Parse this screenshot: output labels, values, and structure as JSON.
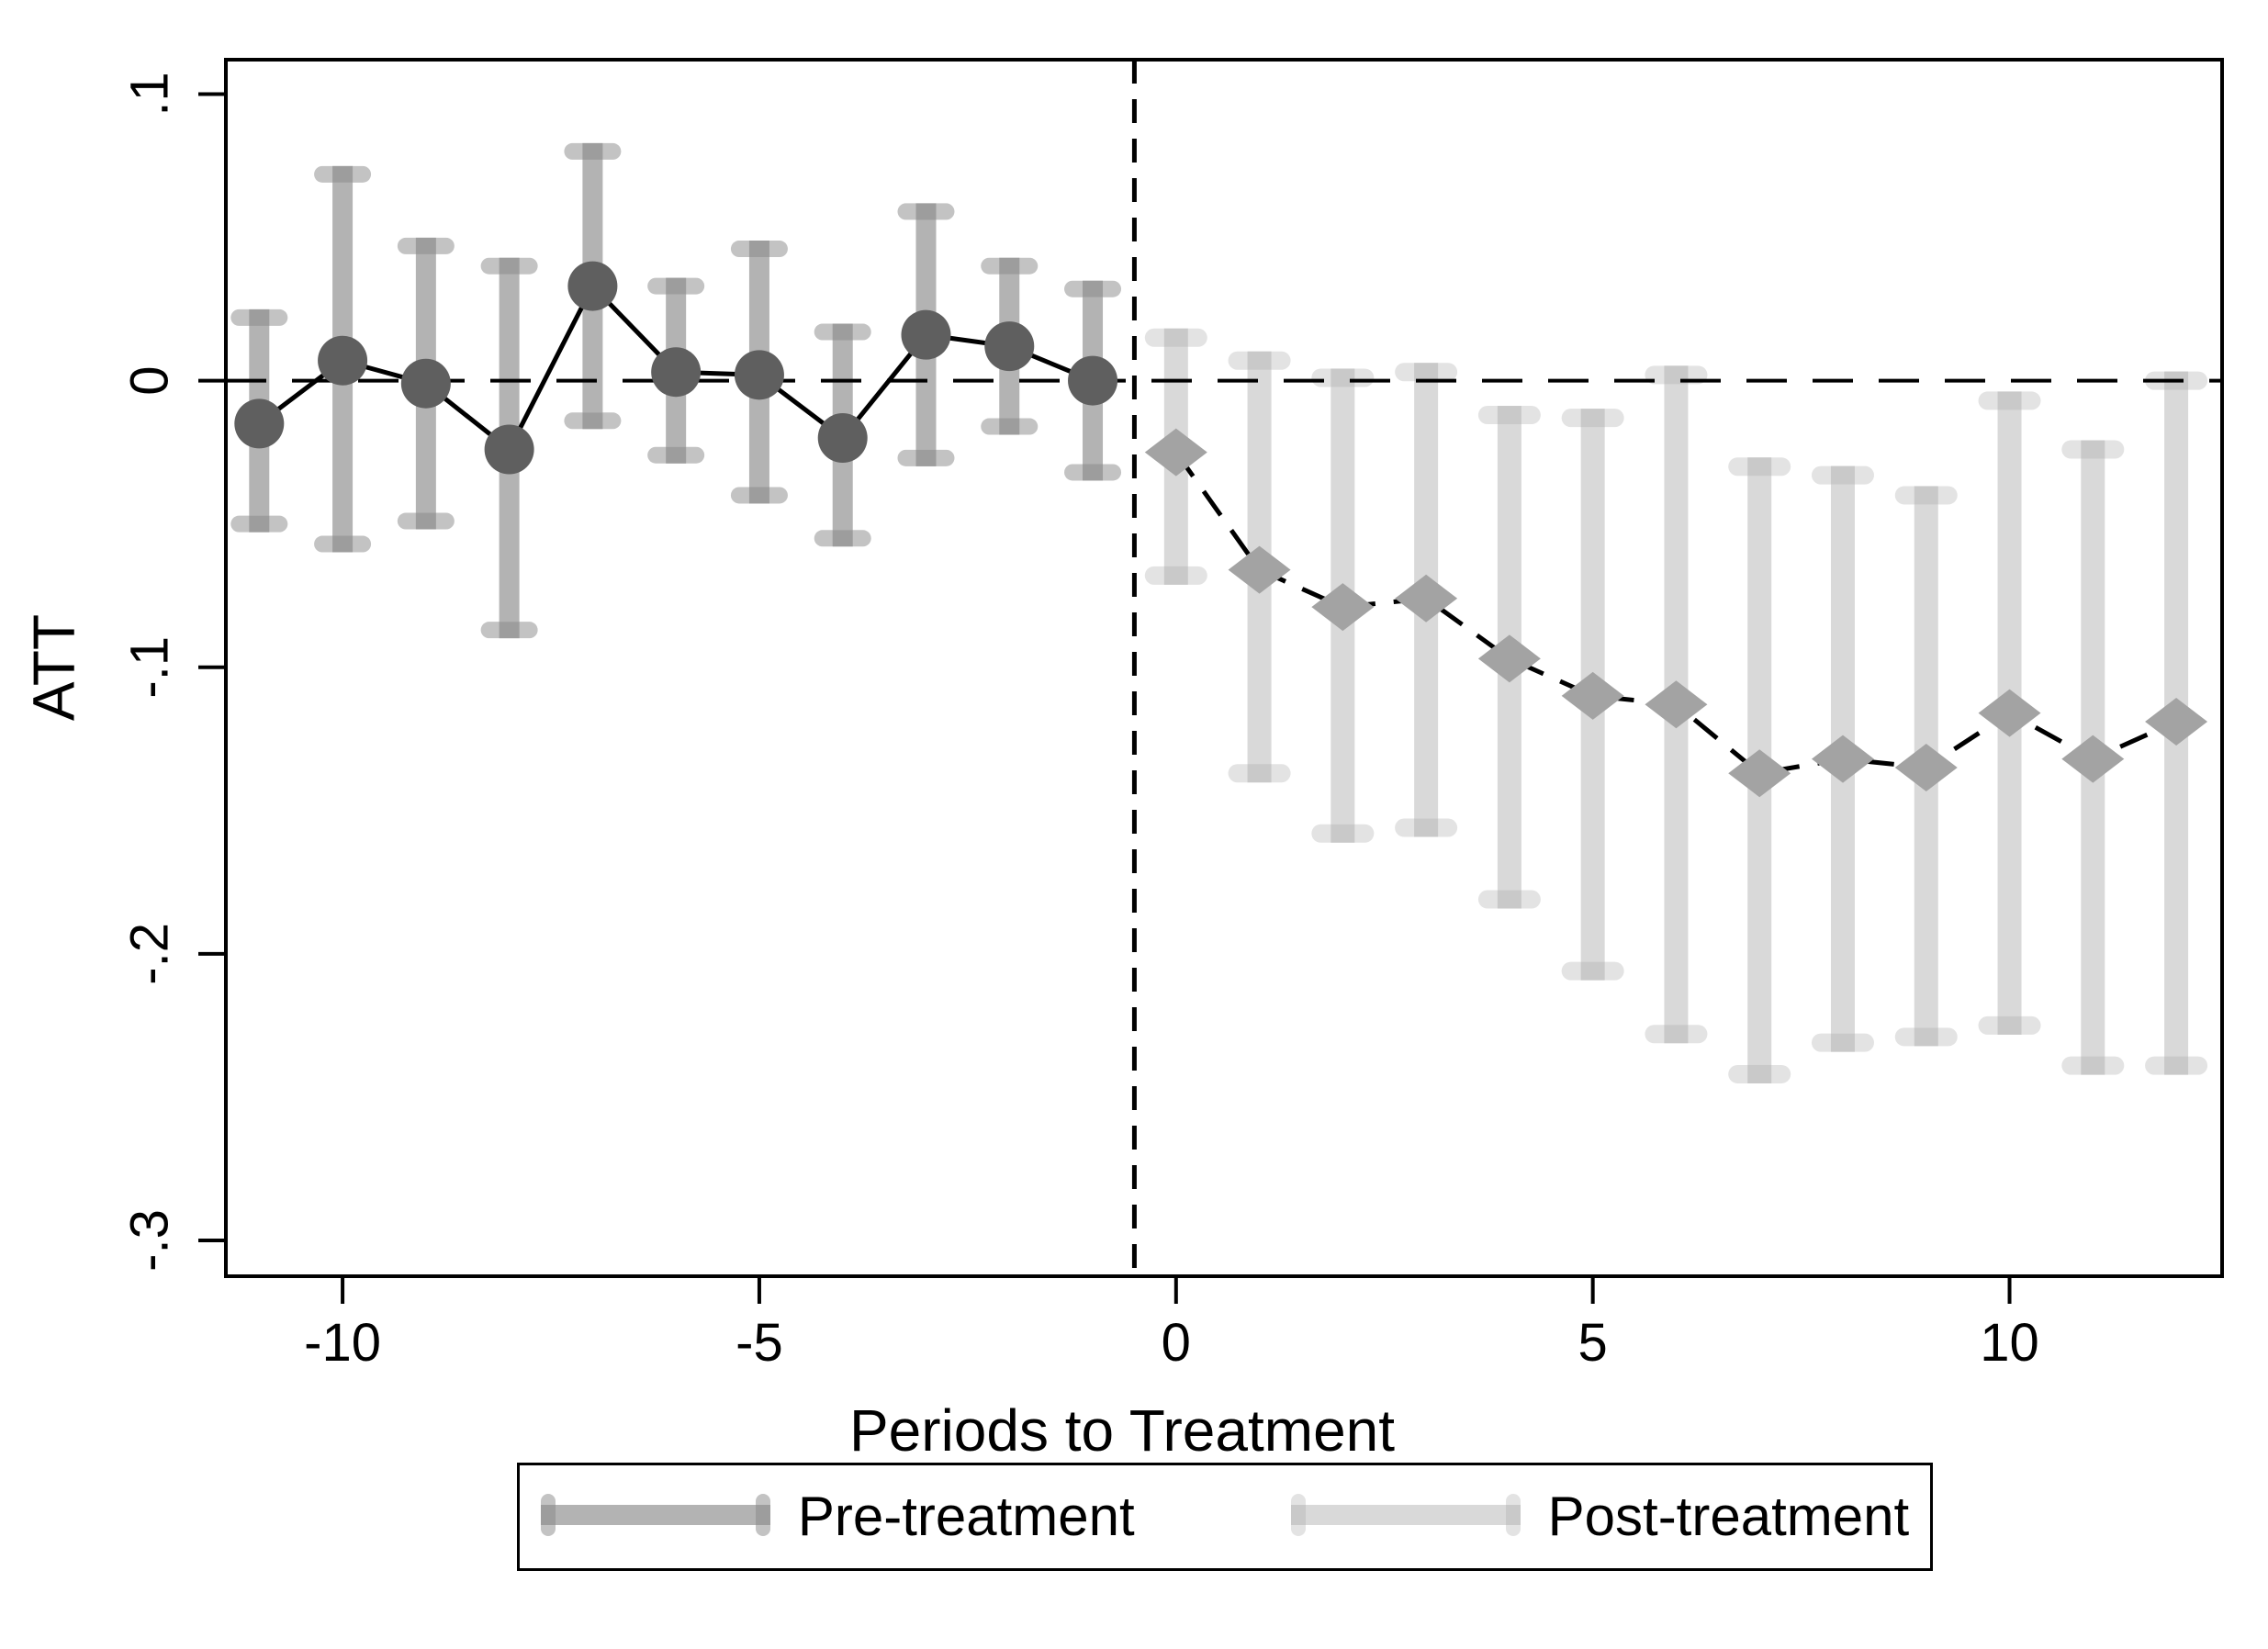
{
  "page": {
    "background": "#ffffff"
  },
  "chart_data": {
    "type": "line",
    "subtype": "event-study errorbar plot",
    "title": "",
    "xlabel": "Periods to Treatment",
    "ylabel": "ATT",
    "xlim": [
      -11.4,
      12.55
    ],
    "ylim": [
      -0.3125,
      0.112
    ],
    "grid": false,
    "x_ticks": [
      {
        "value": -10,
        "label": "-10"
      },
      {
        "value": -5,
        "label": "-5"
      },
      {
        "value": 0,
        "label": "0"
      },
      {
        "value": 5,
        "label": "5"
      },
      {
        "value": 10,
        "label": "10"
      }
    ],
    "y_ticks": [
      {
        "value": 0.1,
        "label": ".1"
      },
      {
        "value": 0,
        "label": "0"
      },
      {
        "value": -0.1,
        "label": "-.1"
      },
      {
        "value": -0.2,
        "label": "-.2"
      },
      {
        "value": -0.3,
        "label": "-.3"
      }
    ],
    "reference_lines": {
      "horizontal_y": 0,
      "vertical_x": -0.5
    },
    "legend": {
      "position": "bottom-center",
      "border_color": "#000000"
    },
    "series": [
      {
        "name": "Pre-treatment",
        "marker": "circle",
        "line_style": "solid",
        "colors": {
          "bar": "#b3b3b3",
          "cap": "#c3c3c3",
          "cap_overlap": "#9d9d9d",
          "marker": "#5f5f5f",
          "line": "#000000"
        },
        "points": [
          {
            "x": -11,
            "y": -0.015,
            "lo": -0.05,
            "hi": 0.022
          },
          {
            "x": -10,
            "y": 0.007,
            "lo": -0.057,
            "hi": 0.072
          },
          {
            "x": -9,
            "y": -0.001,
            "lo": -0.049,
            "hi": 0.047
          },
          {
            "x": -8,
            "y": -0.024,
            "lo": -0.087,
            "hi": 0.04
          },
          {
            "x": -7,
            "y": 0.033,
            "lo": -0.014,
            "hi": 0.08
          },
          {
            "x": -6,
            "y": 0.003,
            "lo": -0.026,
            "hi": 0.033
          },
          {
            "x": -5,
            "y": 0.002,
            "lo": -0.04,
            "hi": 0.046
          },
          {
            "x": -4,
            "y": -0.02,
            "lo": -0.055,
            "hi": 0.017
          },
          {
            "x": -3,
            "y": 0.016,
            "lo": -0.027,
            "hi": 0.059
          },
          {
            "x": -2,
            "y": 0.012,
            "lo": -0.016,
            "hi": 0.04
          },
          {
            "x": -1,
            "y": 0.0,
            "lo": -0.032,
            "hi": 0.032
          }
        ]
      },
      {
        "name": "Post-treatment",
        "marker": "diamond",
        "line_style": "dashed",
        "colors": {
          "bar": "#d9d9d9",
          "cap": "#e3e3e3",
          "cap_overlap": "#c9c9c9",
          "marker": "#a3a3a3",
          "line": "#000000"
        },
        "points": [
          {
            "x": 0,
            "y": -0.025,
            "lo": -0.068,
            "hi": 0.015
          },
          {
            "x": 1,
            "y": -0.066,
            "lo": -0.137,
            "hi": 0.007
          },
          {
            "x": 2,
            "y": -0.079,
            "lo": -0.158,
            "hi": 0.001
          },
          {
            "x": 3,
            "y": -0.076,
            "lo": -0.156,
            "hi": 0.003
          },
          {
            "x": 4,
            "y": -0.097,
            "lo": -0.181,
            "hi": -0.012
          },
          {
            "x": 5,
            "y": -0.11,
            "lo": -0.206,
            "hi": -0.013
          },
          {
            "x": 6,
            "y": -0.113,
            "lo": -0.228,
            "hi": 0.002
          },
          {
            "x": 7,
            "y": -0.137,
            "lo": -0.242,
            "hi": -0.03
          },
          {
            "x": 8,
            "y": -0.132,
            "lo": -0.231,
            "hi": -0.033
          },
          {
            "x": 9,
            "y": -0.135,
            "lo": -0.229,
            "hi": -0.04
          },
          {
            "x": 10,
            "y": -0.116,
            "lo": -0.225,
            "hi": -0.007
          },
          {
            "x": 11,
            "y": -0.132,
            "lo": -0.239,
            "hi": -0.024
          },
          {
            "x": 12,
            "y": -0.119,
            "lo": -0.239,
            "hi": 0.0
          }
        ]
      }
    ]
  }
}
